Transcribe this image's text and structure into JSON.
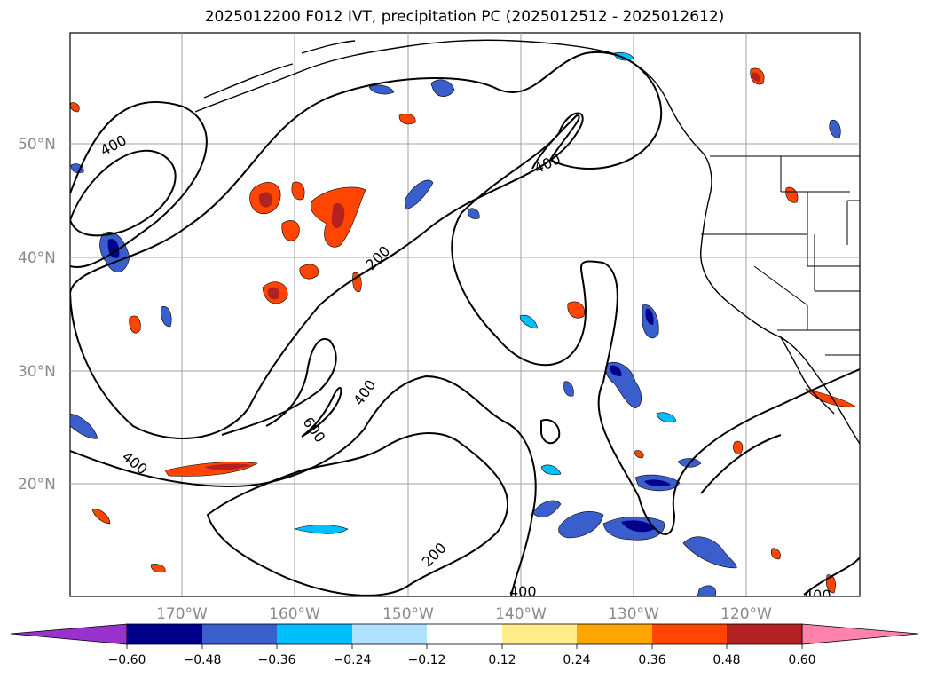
{
  "title": "2025012200 F012 IVT, precipitation PC (2025012512 - 2025012612)",
  "map": {
    "lat_labels": [
      "50°N",
      "40°N",
      "30°N",
      "20°N"
    ],
    "lon_labels": [
      "170°W",
      "160°W",
      "150°W",
      "140°W",
      "130°W",
      "120°W"
    ],
    "contour_labels": [
      "400",
      "400",
      "200",
      "400",
      "600",
      "400",
      "200",
      "400",
      "400"
    ]
  },
  "colorbar": {
    "ticks": [
      "−0.60",
      "−0.48",
      "−0.36",
      "−0.24",
      "−0.12",
      "0.12",
      "0.24",
      "0.36",
      "0.48",
      "0.60"
    ],
    "colors": [
      "#9932cc",
      "#00008b",
      "#3a5fcd",
      "#00bfff",
      "#b0e2ff",
      "#ffffff",
      "#ffec8b",
      "#ffa500",
      "#ff4500",
      "#b22222",
      "#ff82ab"
    ]
  }
}
